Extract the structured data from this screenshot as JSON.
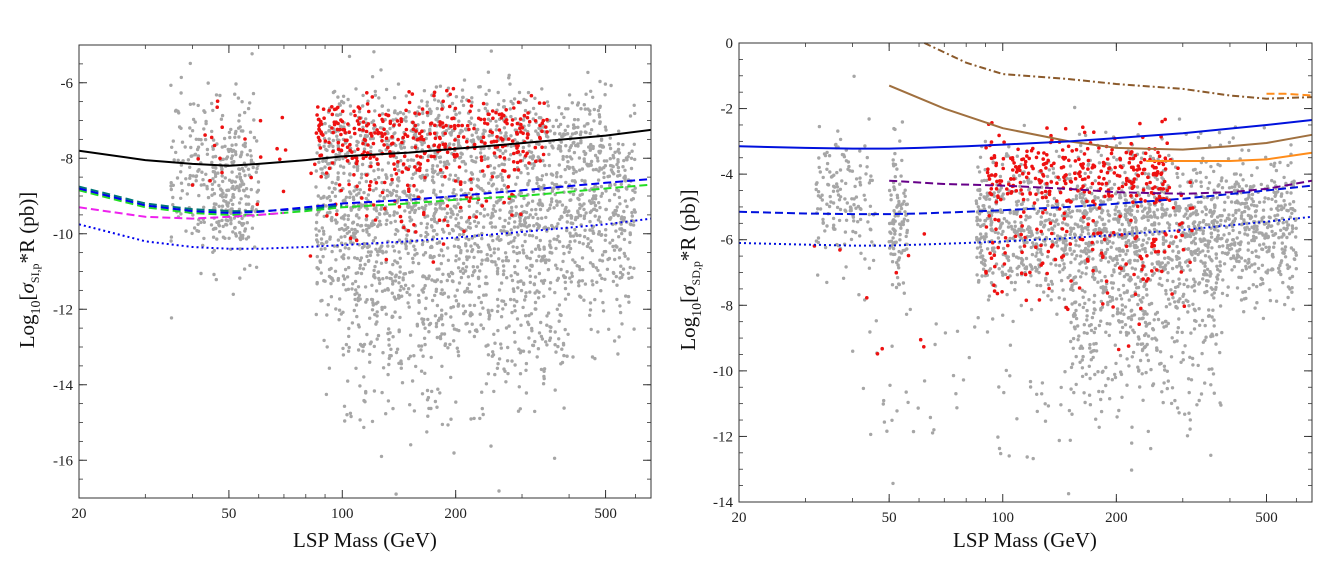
{
  "chart_data": [
    {
      "type": "scatter",
      "panel": "left",
      "xlabel": "LSP Mass (GeV)",
      "ylabel": "Log10[σSI,p*R (pb)]",
      "ylabel_parts": {
        "prefix": "Log",
        "base": "10",
        "open": "[",
        "sigma": "σ",
        "sub": "SI,p",
        "rest": "*R (pb)]"
      },
      "xscale": "log",
      "xlim": [
        20,
        660
      ],
      "ylim": [
        -17,
        -5
      ],
      "x_ticks": [
        {
          "v": 20,
          "label": "20"
        },
        {
          "v": 50,
          "label": "50"
        },
        {
          "v": 100,
          "label": "100"
        },
        {
          "v": 200,
          "label": "200"
        },
        {
          "v": 500,
          "label": "500"
        }
      ],
      "y_ticks": [
        {
          "v": -6,
          "label": "-6"
        },
        {
          "v": -8,
          "label": "-8"
        },
        {
          "v": -10,
          "label": "-10"
        },
        {
          "v": -12,
          "label": "-12"
        },
        {
          "v": -14,
          "label": "-14"
        },
        {
          "v": -16,
          "label": "-16"
        }
      ],
      "scatter_series": [
        {
          "name": "model points",
          "color": "#a6a6a6",
          "clusters": [
            {
              "x": [
                35,
                60
              ],
              "ycenter": -8.4,
              "ysd": 1.1,
              "n": 260
            },
            {
              "x": [
                45,
                56
              ],
              "ycenter": -9.0,
              "ysd": 0.9,
              "n": 120
            },
            {
              "x": [
                85,
                600
              ],
              "ycenter": -9.6,
              "ysd": 1.4,
              "n": 1700
            },
            {
              "x": [
                100,
                400
              ],
              "ycenter": -12.5,
              "ysd": 1.3,
              "n": 380
            },
            {
              "x": [
                90,
                500
              ],
              "ycenter": -7.3,
              "ysd": 0.6,
              "n": 420
            }
          ]
        },
        {
          "name": "highlighted points",
          "color": "#ee1111",
          "clusters": [
            {
              "x": [
                85,
                350
              ],
              "ycenter": -7.4,
              "ysd": 0.5,
              "n": 330
            },
            {
              "x": [
                90,
                300
              ],
              "ycenter": -8.8,
              "ysd": 1.0,
              "n": 100
            },
            {
              "x": [
                40,
                90
              ],
              "ycenter": -7.5,
              "ysd": 1.0,
              "n": 25
            }
          ]
        }
      ],
      "lines": [
        {
          "name": "solid black",
          "color": "#000000",
          "dash": "solid",
          "x": [
            20,
            30,
            40,
            50,
            60,
            80,
            100,
            150,
            200,
            300,
            500,
            660
          ],
          "y": [
            -7.8,
            -8.05,
            -8.15,
            -8.2,
            -8.15,
            -8.05,
            -7.95,
            -7.85,
            -7.75,
            -7.6,
            -7.4,
            -7.25
          ]
        },
        {
          "name": "dashed green",
          "color": "#22dd22",
          "dash": "dashed",
          "x": [
            20,
            30,
            40,
            50,
            60,
            80,
            100,
            150,
            200,
            300,
            500,
            660
          ],
          "y": [
            -8.85,
            -9.3,
            -9.45,
            -9.5,
            -9.5,
            -9.4,
            -9.3,
            -9.2,
            -9.1,
            -9.0,
            -8.8,
            -8.7
          ]
        },
        {
          "name": "dashed teal",
          "color": "#007777",
          "dash": "dashed",
          "x": [
            20,
            30,
            40,
            50,
            60,
            80,
            100
          ],
          "y": [
            -8.75,
            -9.2,
            -9.35,
            -9.4,
            -9.4,
            -9.35,
            -9.25
          ]
        },
        {
          "name": "dashed blue",
          "color": "#0000ee",
          "dash": "dashed",
          "x": [
            20,
            30,
            40,
            50,
            60,
            80,
            100,
            150,
            200,
            300,
            500,
            660
          ],
          "y": [
            -8.8,
            -9.25,
            -9.4,
            -9.45,
            -9.42,
            -9.3,
            -9.2,
            -9.1,
            -9.0,
            -8.85,
            -8.65,
            -8.55
          ]
        },
        {
          "name": "dashed magenta",
          "color": "#ee22ee",
          "dash": "dashed",
          "x": [
            20,
            30,
            40,
            50,
            60,
            70
          ],
          "y": [
            -9.3,
            -9.55,
            -9.6,
            -9.55,
            -9.5,
            -9.45
          ]
        },
        {
          "name": "dotted blue",
          "color": "#0000ee",
          "dash": "dotted",
          "x": [
            20,
            30,
            40,
            50,
            60,
            80,
            100,
            150,
            200,
            300,
            500,
            660
          ],
          "y": [
            -9.75,
            -10.2,
            -10.35,
            -10.4,
            -10.4,
            -10.35,
            -10.3,
            -10.2,
            -10.1,
            -9.95,
            -9.75,
            -9.6
          ]
        }
      ]
    },
    {
      "type": "scatter",
      "panel": "right",
      "xlabel": "LSP Mass (GeV)",
      "ylabel": "Log10[σSD,p*R (pb)]",
      "ylabel_parts": {
        "prefix": "Log",
        "base": "10",
        "open": "[",
        "sigma": "σ",
        "sub": "SD,p",
        "rest": "*R (pb)]"
      },
      "xscale": "log",
      "xlim": [
        20,
        660
      ],
      "ylim": [
        -14,
        0
      ],
      "x_ticks": [
        {
          "v": 20,
          "label": "20"
        },
        {
          "v": 50,
          "label": "50"
        },
        {
          "v": 100,
          "label": "100"
        },
        {
          "v": 200,
          "label": "200"
        },
        {
          "v": 500,
          "label": "500"
        }
      ],
      "y_ticks": [
        {
          "v": 0,
          "label": "0"
        },
        {
          "v": -2,
          "label": "-2"
        },
        {
          "v": -4,
          "label": "-4"
        },
        {
          "v": -6,
          "label": "-6"
        },
        {
          "v": -8,
          "label": "-8"
        },
        {
          "v": -10,
          "label": "-10"
        },
        {
          "v": -12,
          "label": "-12"
        },
        {
          "v": -14,
          "label": "-14"
        }
      ],
      "scatter_series": [
        {
          "name": "model points",
          "color": "#a6a6a6",
          "clusters": [
            {
              "x": [
                32,
                46
              ],
              "ycenter": -4.8,
              "ysd": 1.0,
              "n": 150
            },
            {
              "x": [
                50,
                56
              ],
              "ycenter": -5.5,
              "ysd": 1.2,
              "n": 110
            },
            {
              "x": [
                85,
                600
              ],
              "ycenter": -5.6,
              "ysd": 1.1,
              "n": 1600
            },
            {
              "x": [
                150,
                380
              ],
              "ycenter": -8.5,
              "ysd": 1.4,
              "n": 420
            },
            {
              "x": [
                40,
                300
              ],
              "ycenter": -10.5,
              "ysd": 1.5,
              "n": 90
            }
          ]
        },
        {
          "name": "highlighted points",
          "color": "#ee1111",
          "clusters": [
            {
              "x": [
                90,
                280
              ],
              "ycenter": -3.9,
              "ysd": 0.6,
              "n": 280
            },
            {
              "x": [
                90,
                320
              ],
              "ycenter": -6.0,
              "ysd": 1.2,
              "n": 170
            },
            {
              "x": [
                28,
                70
              ],
              "ycenter": -8.0,
              "ysd": 1.5,
              "n": 10
            }
          ]
        }
      ],
      "lines": [
        {
          "name": "dotdashed brown",
          "color": "#8b5a2b",
          "dash": "dotdashed",
          "x": [
            62,
            80,
            100,
            150,
            200,
            300,
            400,
            500,
            660
          ],
          "y": [
            0,
            -0.6,
            -0.95,
            -1.1,
            -1.25,
            -1.4,
            -1.6,
            -1.7,
            -1.65
          ]
        },
        {
          "name": "solid brown",
          "color": "#a0703f",
          "dash": "solid",
          "x": [
            50,
            70,
            100,
            150,
            200,
            300,
            400,
            500,
            660
          ],
          "y": [
            -1.3,
            -2.0,
            -2.6,
            -3.0,
            -3.2,
            -3.25,
            -3.15,
            -3.05,
            -2.8
          ]
        },
        {
          "name": "solid blue",
          "color": "#0011dd",
          "dash": "solid",
          "x": [
            20,
            30,
            40,
            50,
            60,
            80,
            100,
            150,
            200,
            300,
            500,
            660
          ],
          "y": [
            -3.15,
            -3.2,
            -3.22,
            -3.22,
            -3.2,
            -3.15,
            -3.1,
            -3.0,
            -2.9,
            -2.75,
            -2.5,
            -2.35
          ]
        },
        {
          "name": "solid orange",
          "color": "#ff8c1a",
          "dash": "solid",
          "x": [
            240,
            300,
            400,
            500,
            660
          ],
          "y": [
            -3.6,
            -3.6,
            -3.6,
            -3.55,
            -3.35
          ]
        },
        {
          "name": "dashed orange",
          "color": "#ff8c1a",
          "dash": "dashed",
          "x": [
            500,
            560,
            660
          ],
          "y": [
            -1.55,
            -1.55,
            -1.6
          ]
        },
        {
          "name": "dashed purple",
          "color": "#660088",
          "dash": "dashed",
          "x": [
            50,
            70,
            100,
            150,
            200,
            300,
            400,
            500,
            660
          ],
          "y": [
            -4.2,
            -4.3,
            -4.35,
            -4.45,
            -4.55,
            -4.6,
            -4.55,
            -4.45,
            -4.2
          ]
        },
        {
          "name": "dashed blue",
          "color": "#0011dd",
          "dash": "dashed",
          "x": [
            20,
            30,
            40,
            50,
            60,
            80,
            100,
            150,
            200,
            300,
            500,
            660
          ],
          "y": [
            -5.15,
            -5.2,
            -5.22,
            -5.22,
            -5.2,
            -5.15,
            -5.1,
            -5.0,
            -4.9,
            -4.75,
            -4.5,
            -4.35
          ]
        },
        {
          "name": "dotted blue",
          "color": "#0011dd",
          "dash": "dotted",
          "x": [
            20,
            30,
            40,
            50,
            60,
            80,
            100,
            150,
            200,
            300,
            500,
            660
          ],
          "y": [
            -6.1,
            -6.15,
            -6.18,
            -6.18,
            -6.15,
            -6.1,
            -6.05,
            -5.95,
            -5.85,
            -5.7,
            -5.45,
            -5.3
          ]
        }
      ]
    }
  ]
}
